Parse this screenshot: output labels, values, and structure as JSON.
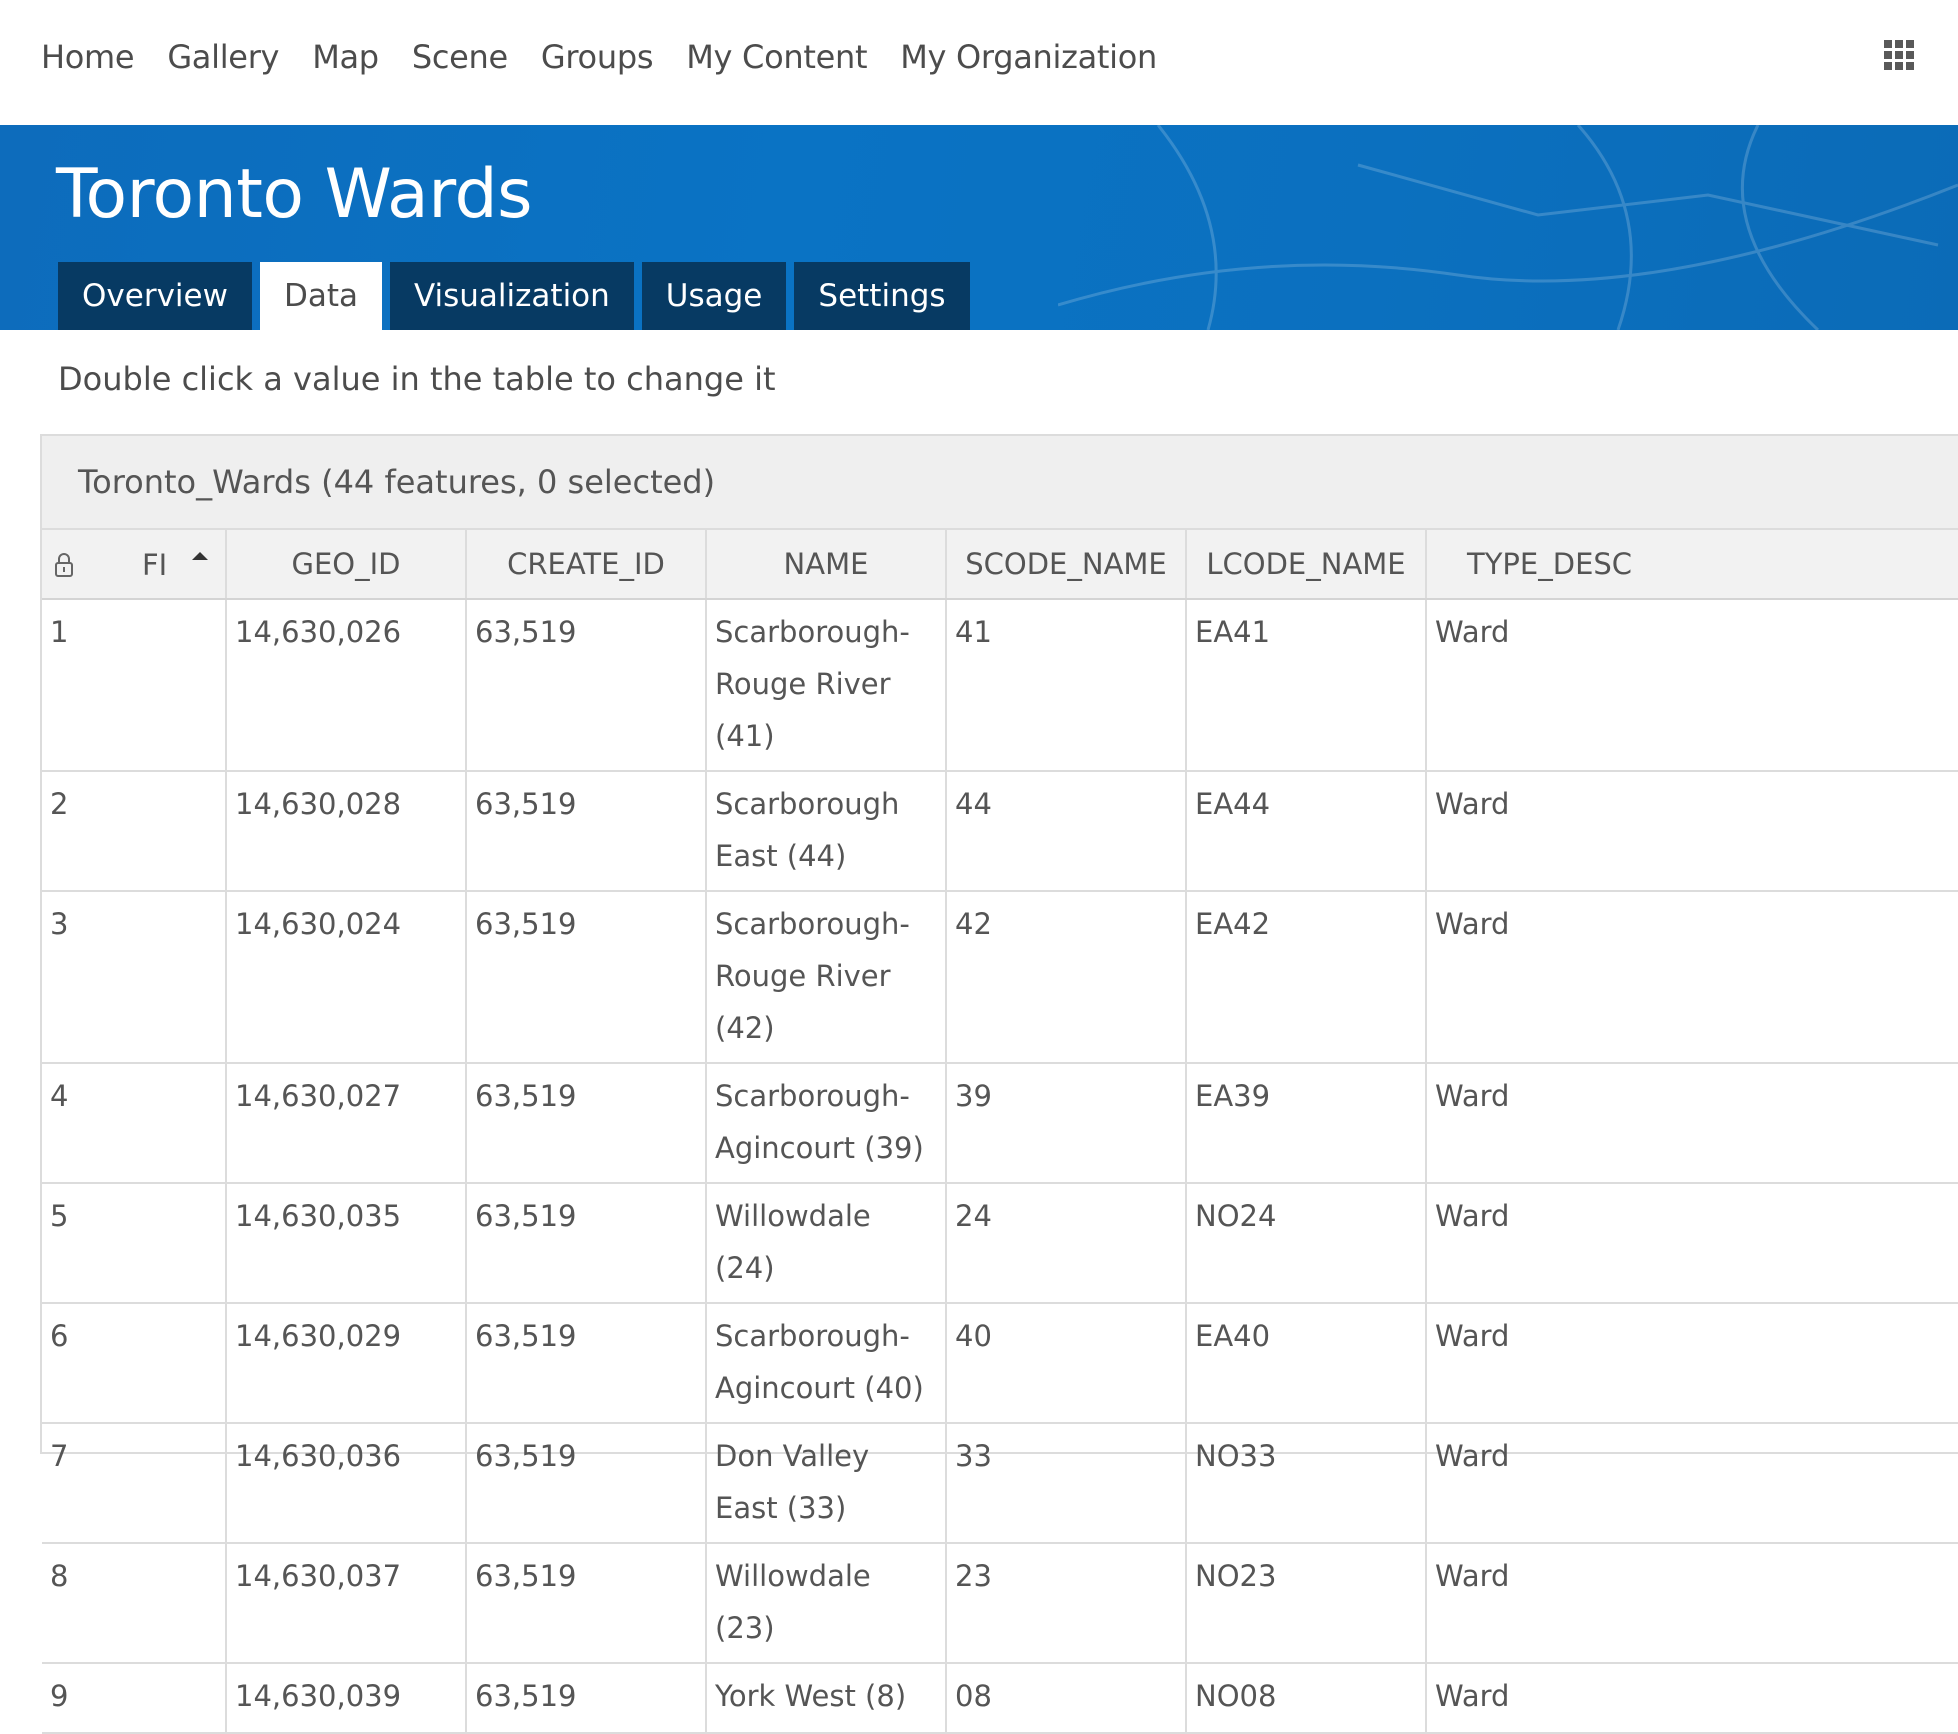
{
  "nav": {
    "items": [
      "Home",
      "Gallery",
      "Map",
      "Scene",
      "Groups",
      "My Content",
      "My Organization"
    ]
  },
  "banner": {
    "title": "Toronto Wards",
    "tabs": [
      {
        "label": "Overview",
        "active": false
      },
      {
        "label": "Data",
        "active": true
      },
      {
        "label": "Visualization",
        "active": false
      },
      {
        "label": "Usage",
        "active": false
      },
      {
        "label": "Settings",
        "active": false
      }
    ]
  },
  "hint": "Double click a value in the table to change it",
  "table": {
    "title": "Toronto_Wards (44 features, 0 selected)",
    "columns": [
      "FI",
      "GEO_ID",
      "CREATE_ID",
      "NAME",
      "SCODE_NAME",
      "LCODE_NAME",
      "TYPE_DESC"
    ],
    "rows": [
      [
        "1",
        "14,630,026",
        "63,519",
        "Scarborough-Rouge River (41)",
        "41",
        "EA41",
        "Ward"
      ],
      [
        "2",
        "14,630,028",
        "63,519",
        "Scarborough East (44)",
        "44",
        "EA44",
        "Ward"
      ],
      [
        "3",
        "14,630,024",
        "63,519",
        "Scarborough-Rouge River (42)",
        "42",
        "EA42",
        "Ward"
      ],
      [
        "4",
        "14,630,027",
        "63,519",
        "Scarborough-Agincourt (39)",
        "39",
        "EA39",
        "Ward"
      ],
      [
        "5",
        "14,630,035",
        "63,519",
        "Willowdale (24)",
        "24",
        "NO24",
        "Ward"
      ],
      [
        "6",
        "14,630,029",
        "63,519",
        "Scarborough-Agincourt (40)",
        "40",
        "EA40",
        "Ward"
      ],
      [
        "7",
        "14,630,036",
        "63,519",
        "Don Valley East (33)",
        "33",
        "NO33",
        "Ward"
      ],
      [
        "8",
        "14,630,037",
        "63,519",
        "Willowdale (23)",
        "23",
        "NO23",
        "Ward"
      ],
      [
        "9",
        "14,630,039",
        "63,519",
        "York West (8)",
        "08",
        "NO08",
        "Ward"
      ]
    ]
  },
  "colors": {
    "banner": "#0a73c4",
    "tab_inactive": "#073a63",
    "header_bg": "#f2f2f2"
  }
}
